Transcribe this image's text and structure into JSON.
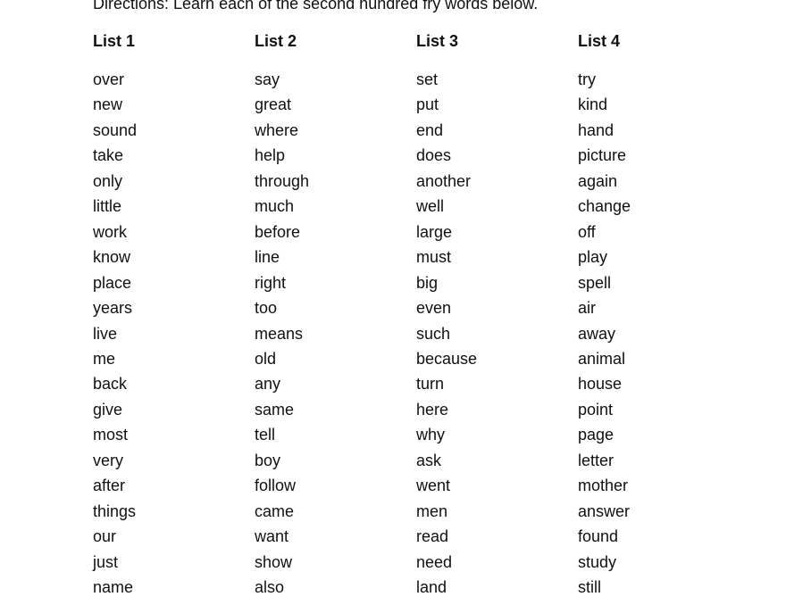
{
  "directions": "Directions: Learn each of the second hundred fry words below.",
  "lists": [
    {
      "heading": "List 1",
      "words": [
        "over",
        "new",
        "sound",
        "take",
        "only",
        "little",
        "work",
        "know",
        "place",
        "years",
        "live",
        "me",
        "back",
        "give",
        "most",
        "very",
        "after",
        "things",
        "our",
        "just",
        "name"
      ]
    },
    {
      "heading": "List 2",
      "words": [
        "say",
        "great",
        "where",
        "help",
        "through",
        "much",
        "before",
        "line",
        "right",
        "too",
        "means",
        "old",
        "any",
        "same",
        "tell",
        "boy",
        "follow",
        "came",
        "want",
        "show",
        "also"
      ]
    },
    {
      "heading": "List 3",
      "words": [
        "set",
        "put",
        "end",
        "does",
        "another",
        "well",
        "large",
        "must",
        "big",
        "even",
        "such",
        "because",
        "turn",
        "here",
        "why",
        "ask",
        "went",
        "men",
        "read",
        "need",
        "land"
      ]
    },
    {
      "heading": "List 4",
      "words": [
        "try",
        "kind",
        "hand",
        "picture",
        "again",
        "change",
        "off",
        "play",
        "spell",
        "air",
        "away",
        "animal",
        "house",
        "point",
        "page",
        "letter",
        "mother",
        "answer",
        "found",
        "study",
        "still"
      ]
    }
  ]
}
